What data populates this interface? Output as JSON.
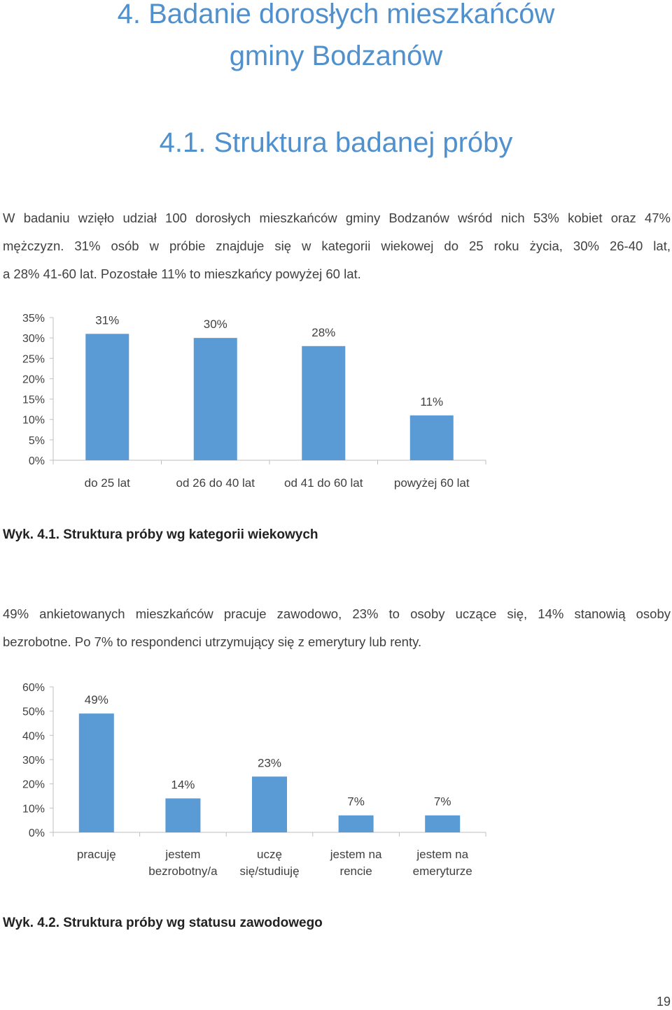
{
  "heading": {
    "line1": "4. Badanie dorosłych mieszkańców",
    "line2": "gminy Bodzanów",
    "subheading": "4.1. Struktura badanej próby"
  },
  "para1": {
    "lines": [
      "W badaniu wzięło udział 100 dorosłych mieszkańców gminy Bodzanów wśród nich 53% kobiet oraz 47%",
      "mężczyzn. 31% osób w próbie znajduje się w kategorii wiekowej do 25 roku życia, 30% 26-40 lat,",
      "a 28% 41-60 lat. Pozostałe 11% to mieszkańcy powyżej 60 lat."
    ]
  },
  "chart1_caption": "Wyk. 4.1. Struktura próby wg kategorii wiekowych",
  "para2": {
    "lines": [
      "49% ankietowanych mieszkańców pracuje zawodowo, 23% to osoby uczące się, 14% stanowią osoby",
      "bezrobotne. Po 7% to respondenci utrzymujący się z emerytury lub renty."
    ]
  },
  "chart2_caption": "Wyk. 4.2. Struktura próby wg statusu zawodowego",
  "page_number": "19",
  "colors": {
    "heading": "#4f90cd",
    "bar": "#5b9bd5",
    "axis": "#bfbfbf"
  },
  "chart_data": [
    {
      "type": "bar",
      "title": "",
      "xlabel": "",
      "ylabel": "",
      "categories": [
        [
          "do 25 lat"
        ],
        [
          "od 26 do 40 lat"
        ],
        [
          "od 41 do 60 lat"
        ],
        [
          "powyżej 60 lat"
        ]
      ],
      "values": [
        31,
        30,
        28,
        11
      ],
      "data_labels": [
        "31%",
        "30%",
        "28%",
        "11%"
      ],
      "ylim": [
        0,
        35
      ],
      "yticks": [
        "0%",
        "5%",
        "10%",
        "15%",
        "20%",
        "25%",
        "30%",
        "35%"
      ],
      "grid": false
    },
    {
      "type": "bar",
      "title": "",
      "xlabel": "",
      "ylabel": "",
      "categories": [
        [
          "pracuję"
        ],
        [
          "jestem",
          "bezrobotny/a"
        ],
        [
          "uczę",
          "się/studiuję"
        ],
        [
          "jestem na",
          "rencie"
        ],
        [
          "jestem na",
          "emeryturze"
        ]
      ],
      "values": [
        49,
        14,
        23,
        7,
        7
      ],
      "data_labels": [
        "49%",
        "14%",
        "23%",
        "7%",
        "7%"
      ],
      "ylim": [
        0,
        60
      ],
      "yticks": [
        "0%",
        "10%",
        "20%",
        "30%",
        "40%",
        "50%",
        "60%"
      ],
      "grid": false
    }
  ]
}
